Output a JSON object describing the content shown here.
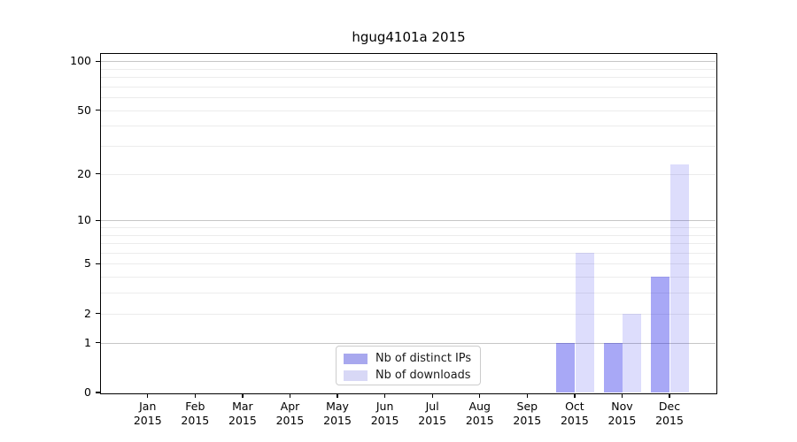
{
  "chart_data": {
    "type": "bar",
    "title": "hgug4101a 2015",
    "categories": [
      "Jan",
      "Feb",
      "Mar",
      "Apr",
      "May",
      "Jun",
      "Jul",
      "Aug",
      "Sep",
      "Oct",
      "Nov",
      "Dec"
    ],
    "x_tick_year": "2015",
    "series": [
      {
        "name": "Nb of distinct IPs",
        "color": "rgba(0,0,230,0.34)",
        "legend_color": "#a8a8ee",
        "values": [
          0,
          0,
          0,
          0,
          0,
          0,
          0,
          0,
          0,
          1,
          1,
          4
        ]
      },
      {
        "name": "Nb of downloads",
        "color": "rgba(0,0,230,0.135)",
        "legend_color": "#d8d8f6",
        "values": [
          0,
          0,
          0,
          0,
          0,
          0,
          0,
          0,
          0,
          6,
          2,
          23
        ]
      }
    ],
    "y_ticks": [
      0,
      1,
      2,
      5,
      10,
      20,
      50,
      100
    ],
    "y_scale": "log10(value+1)",
    "ylim": [
      0,
      112
    ],
    "grid": {
      "major": [
        1,
        10,
        100
      ],
      "minor": [
        2,
        3,
        4,
        5,
        6,
        7,
        8,
        9,
        20,
        30,
        40,
        50,
        60,
        70,
        80,
        90
      ]
    },
    "legend_position": "bottom-center"
  }
}
